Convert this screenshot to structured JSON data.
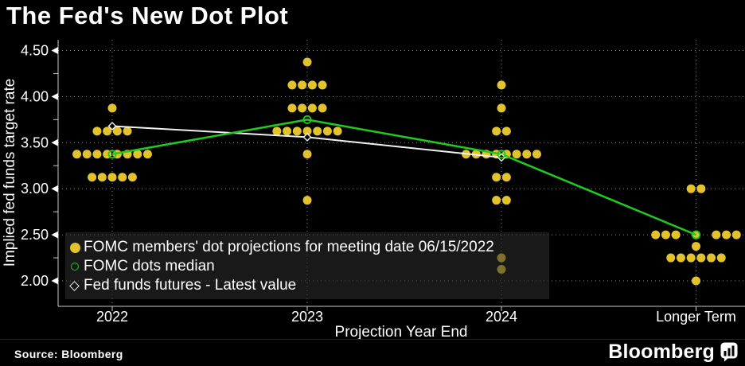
{
  "title": "The Fed's New Dot Plot",
  "source": "Source: Bloomberg",
  "branding": {
    "wordmark": "Bloomberg",
    "logo_icon": "bar-chart-speech-bubble-icon"
  },
  "legend": {
    "items": [
      {
        "marker": "yellow-filled-dot",
        "label": "FOMC members' dot projections for meeting date 06/15/2022"
      },
      {
        "marker": "green-open-circle",
        "label": "FOMC dots median"
      },
      {
        "marker": "white-open-diamond",
        "label": "Fed funds futures - Latest value"
      }
    ]
  },
  "colors": {
    "background": "#000000",
    "dot": "#e3c32b",
    "median_line": "#1ecb1e",
    "futures_line": "#f0f0f0",
    "text": "#ffffff",
    "grid": "#ffffff"
  },
  "chart_data": {
    "type": "scatter",
    "title": "The Fed's New Dot Plot",
    "xlabel": "Projection Year End",
    "ylabel": "Implied fed funds target rate",
    "categories": [
      "2022",
      "2023",
      "2024",
      "Longer Term"
    ],
    "y_axis": {
      "tick_labels": [
        "4.50",
        "4.00",
        "3.50",
        "3.00",
        "2.50",
        "2.00"
      ],
      "tick_values": [
        4.5,
        4.0,
        3.5,
        3.0,
        2.5,
        2.0
      ],
      "minor_tick_values": [
        4.25,
        3.75,
        3.25,
        2.75,
        2.25
      ],
      "range": [
        1.72,
        4.62
      ],
      "grid": "dashed"
    },
    "dot_rows": [
      {
        "category": "2022",
        "value": 3.875,
        "count": 1
      },
      {
        "category": "2022",
        "value": 3.625,
        "count": 4
      },
      {
        "category": "2022",
        "value": 3.375,
        "count": 8
      },
      {
        "category": "2022",
        "value": 3.125,
        "count": 5
      },
      {
        "category": "2023",
        "value": 4.375,
        "count": 1
      },
      {
        "category": "2023",
        "value": 4.125,
        "count": 4
      },
      {
        "category": "2023",
        "value": 3.875,
        "count": 4
      },
      {
        "category": "2023",
        "value": 3.625,
        "count": 7
      },
      {
        "category": "2023",
        "value": 3.375,
        "count": 1
      },
      {
        "category": "2023",
        "value": 2.875,
        "count": 1
      },
      {
        "category": "2024",
        "value": 4.125,
        "count": 1
      },
      {
        "category": "2024",
        "value": 3.875,
        "count": 1
      },
      {
        "category": "2024",
        "value": 3.625,
        "count": 2
      },
      {
        "category": "2024",
        "value": 3.375,
        "count": 8
      },
      {
        "category": "2024",
        "value": 3.125,
        "count": 2
      },
      {
        "category": "2024",
        "value": 2.875,
        "count": 2
      },
      {
        "category": "2024",
        "value": 2.25,
        "count": 1
      },
      {
        "category": "2024",
        "value": 2.125,
        "count": 1
      },
      {
        "category": "Longer Term",
        "value": 3.0,
        "count": 2
      },
      {
        "category": "Longer Term",
        "value": 2.5,
        "count": 7,
        "layout": "center-gap"
      },
      {
        "category": "Longer Term",
        "value": 2.375,
        "count": 1
      },
      {
        "category": "Longer Term",
        "value": 2.25,
        "count": 6
      },
      {
        "category": "Longer Term",
        "value": 2.0,
        "count": 1
      }
    ],
    "series": [
      {
        "name": "FOMC dots median",
        "type": "line",
        "marker": "open-circle",
        "color": "#1ecb1e",
        "categories": [
          "2022",
          "2023",
          "2024",
          "Longer Term"
        ],
        "values": [
          3.375,
          3.75,
          3.375,
          2.5
        ]
      },
      {
        "name": "Fed funds futures - Latest value",
        "type": "line",
        "marker": "open-diamond",
        "color": "#f0f0f0",
        "categories": [
          "2022",
          "2023",
          "2024"
        ],
        "values": [
          3.68,
          3.56,
          3.34
        ]
      }
    ],
    "legend_position": "bottom-left-overlay"
  }
}
